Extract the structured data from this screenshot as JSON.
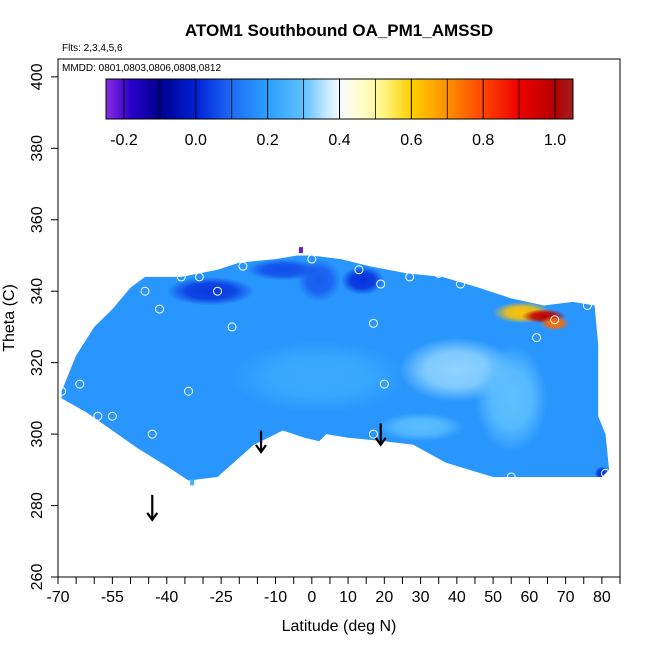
{
  "chart_data": {
    "type": "heatmap",
    "title": "ATOM1 Southbound OA_PM1_AMSSD",
    "flights_label": "Flts: 2,3,4,5,6",
    "dates_label": "MMDD: 0801,0803,0806,0808,0812",
    "xlabel": "Latitude (deg N)",
    "ylabel": "Theta (C)",
    "xlim": [
      -70,
      85
    ],
    "ylim": [
      260,
      405
    ],
    "x_ticks": [
      -70,
      -55,
      -40,
      -25,
      -10,
      0,
      10,
      20,
      30,
      40,
      50,
      60,
      70,
      80
    ],
    "x_tick_labels": [
      "-70",
      "-55",
      "-40",
      "-25",
      "-10",
      "0",
      "10",
      "20",
      "30",
      "40",
      "50",
      "60",
      "70",
      "80"
    ],
    "x_minor_ticks": [
      -65,
      -60,
      -50,
      -45,
      -35,
      -30,
      -20,
      -15,
      -5,
      5,
      15,
      25,
      35,
      45,
      55,
      65,
      75,
      85
    ],
    "y_ticks": [
      260,
      280,
      300,
      320,
      340,
      360,
      380,
      400
    ],
    "y_tick_labels": [
      "260",
      "280",
      "300",
      "320",
      "340",
      "360",
      "380",
      "400"
    ],
    "colorbar": {
      "range": [
        -0.25,
        1.05
      ],
      "ticks": [
        -0.2,
        0.0,
        0.2,
        0.4,
        0.6,
        0.8,
        1.0
      ],
      "tick_labels": [
        "-0.2",
        "0.0",
        "0.2",
        "0.4",
        "0.6",
        "0.8",
        "1.0"
      ],
      "stops": [
        {
          "v": -0.25,
          "color": "#8a2be2"
        },
        {
          "v": -0.18,
          "color": "#2a00cc"
        },
        {
          "v": -0.1,
          "color": "#00008b"
        },
        {
          "v": 0.0,
          "color": "#0020d8"
        },
        {
          "v": 0.1,
          "color": "#1e6cf4"
        },
        {
          "v": 0.2,
          "color": "#2ba0ff"
        },
        {
          "v": 0.3,
          "color": "#5fc0ff"
        },
        {
          "v": 0.36,
          "color": "#bfe6ff"
        },
        {
          "v": 0.4,
          "color": "#f4fbff"
        },
        {
          "v": 0.45,
          "color": "#ffffd6"
        },
        {
          "v": 0.52,
          "color": "#fff68a"
        },
        {
          "v": 0.6,
          "color": "#ffd000"
        },
        {
          "v": 0.7,
          "color": "#ff9000"
        },
        {
          "v": 0.8,
          "color": "#ff4400"
        },
        {
          "v": 0.9,
          "color": "#ee0000"
        },
        {
          "v": 1.0,
          "color": "#b40000"
        },
        {
          "v": 1.05,
          "color": "#a02020"
        }
      ]
    },
    "field_outline": [
      [
        -69,
        312
      ],
      [
        -65,
        322
      ],
      [
        -60,
        330
      ],
      [
        -55,
        335
      ],
      [
        -50,
        341
      ],
      [
        -46,
        344
      ],
      [
        -36,
        344
      ],
      [
        -26,
        346
      ],
      [
        -20,
        348
      ],
      [
        -10,
        349
      ],
      [
        -4,
        350
      ],
      [
        0,
        350
      ],
      [
        8,
        349
      ],
      [
        16,
        347
      ],
      [
        26,
        345
      ],
      [
        36,
        344
      ],
      [
        46,
        341
      ],
      [
        55,
        338
      ],
      [
        64,
        336
      ],
      [
        72,
        337
      ],
      [
        78,
        336
      ],
      [
        79,
        325
      ],
      [
        79,
        305
      ],
      [
        81,
        300
      ],
      [
        82,
        290
      ],
      [
        80,
        288
      ],
      [
        50,
        288
      ],
      [
        37,
        292
      ],
      [
        28,
        297
      ],
      [
        20,
        298
      ],
      [
        10,
        299
      ],
      [
        4,
        300
      ],
      [
        2,
        298
      ],
      [
        -2,
        299
      ],
      [
        -8,
        301
      ],
      [
        -16,
        297
      ],
      [
        -26,
        288
      ],
      [
        -34,
        287
      ],
      [
        -40,
        291
      ],
      [
        -48,
        296
      ],
      [
        -55,
        301
      ],
      [
        -62,
        306
      ],
      [
        -69,
        310
      ]
    ],
    "field_background_value": 0.18,
    "field_features": [
      {
        "x": -28,
        "y": 340,
        "rx": 12,
        "ry": 4,
        "value": 0.03
      },
      {
        "x": 2,
        "y": 343,
        "rx": 6,
        "ry": 6,
        "value": 0.08
      },
      {
        "x": 14,
        "y": 343,
        "rx": 6,
        "ry": 4,
        "value": 0.02
      },
      {
        "x": -8,
        "y": 346,
        "rx": 10,
        "ry": 3,
        "value": 0.06
      },
      {
        "x": 40,
        "y": 318,
        "rx": 16,
        "ry": 9,
        "value": 0.33
      },
      {
        "x": 55,
        "y": 310,
        "rx": 10,
        "ry": 15,
        "value": 0.3
      },
      {
        "x": 30,
        "y": 302,
        "rx": 12,
        "ry": 4,
        "value": 0.29
      },
      {
        "x": 2,
        "y": 316,
        "rx": 24,
        "ry": 10,
        "value": 0.23
      },
      {
        "x": 58,
        "y": 334,
        "rx": 8,
        "ry": 3,
        "value": 0.62
      },
      {
        "x": 64,
        "y": 333,
        "rx": 6,
        "ry": 2,
        "value": 0.98
      },
      {
        "x": 67,
        "y": 331,
        "rx": 4,
        "ry": 2,
        "value": 0.75
      },
      {
        "x": 80,
        "y": 289,
        "rx": 2,
        "ry": 2,
        "value": 0.02
      }
    ],
    "extra_patches": [
      {
        "x": -3,
        "y": 351.5,
        "value": -0.22
      },
      {
        "x": -33,
        "y": 286.5,
        "value": 0.25
      }
    ],
    "sample_points": [
      [
        -69,
        312
      ],
      [
        -64,
        314
      ],
      [
        -59,
        305
      ],
      [
        -55,
        305
      ],
      [
        -46,
        340
      ],
      [
        -42,
        335
      ],
      [
        -36,
        344
      ],
      [
        -31,
        344
      ],
      [
        -26,
        340
      ],
      [
        -19,
        347
      ],
      [
        -22,
        330
      ],
      [
        -34,
        312
      ],
      [
        -44,
        300
      ],
      [
        0,
        349
      ],
      [
        13,
        346
      ],
      [
        17,
        331
      ],
      [
        19,
        342
      ],
      [
        20,
        314
      ],
      [
        27,
        344
      ],
      [
        35,
        345
      ],
      [
        41,
        342
      ],
      [
        62,
        327
      ],
      [
        67,
        332
      ],
      [
        76,
        336
      ],
      [
        55,
        288
      ],
      [
        81,
        289
      ],
      [
        17,
        300
      ]
    ],
    "arrows": [
      {
        "x": -44,
        "y_top": 283,
        "y_bottom": 276
      },
      {
        "x": -14,
        "y_top": 301,
        "y_bottom": 295
      },
      {
        "x": 19,
        "y_top": 303,
        "y_bottom": 297
      }
    ]
  }
}
